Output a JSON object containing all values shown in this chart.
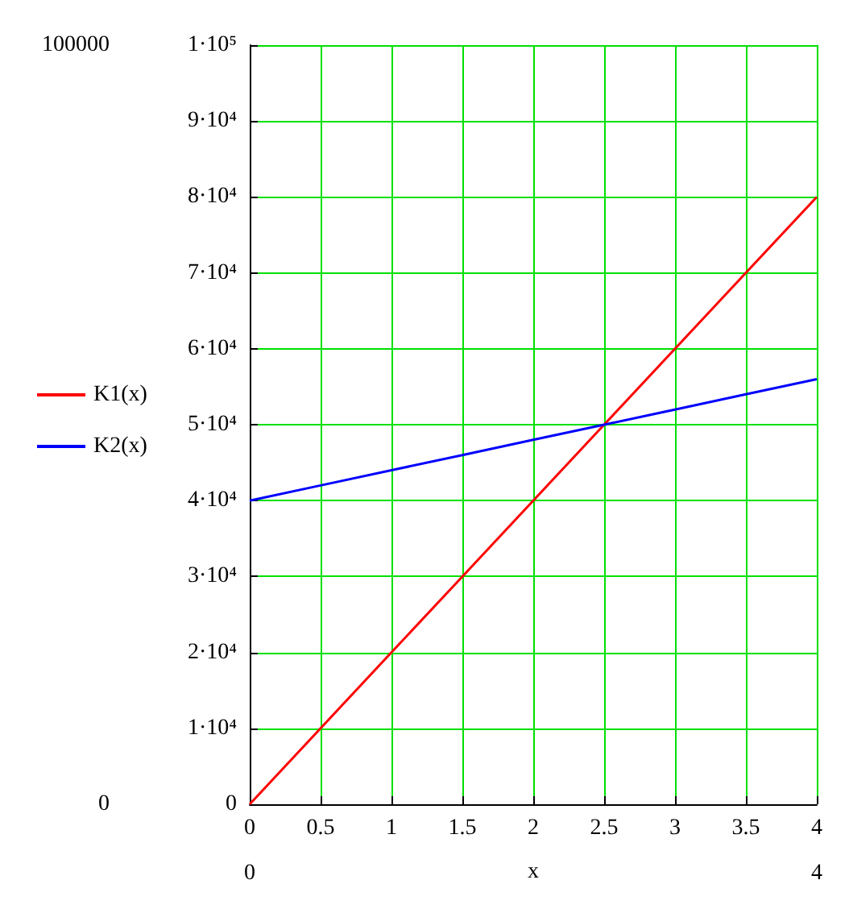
{
  "chart_data": {
    "type": "line",
    "xlabel": "x",
    "x": [
      0,
      0.5,
      1,
      1.5,
      2,
      2.5,
      3,
      3.5,
      4
    ],
    "series": [
      {
        "name": "K1(x)",
        "color": "#ff0000",
        "values": [
          0,
          10000,
          20000,
          30000,
          40000,
          50000,
          60000,
          70000,
          80000
        ]
      },
      {
        "name": "K2(x)",
        "color": "#0000ff",
        "values": [
          40000,
          42000,
          44000,
          46000,
          48000,
          50000,
          52000,
          54000,
          56000
        ]
      }
    ],
    "xlim": [
      0,
      4
    ],
    "xticks": [
      0,
      0.5,
      1,
      1.5,
      2,
      2.5,
      3,
      3.5,
      4
    ],
    "ylim": [
      0,
      100000
    ],
    "yticks": [
      {
        "value": 0,
        "label": "0"
      },
      {
        "value": 10000,
        "label": "1·10⁴"
      },
      {
        "value": 20000,
        "label": "2·10⁴"
      },
      {
        "value": 30000,
        "label": "3·10⁴"
      },
      {
        "value": 40000,
        "label": "4·10⁴"
      },
      {
        "value": 50000,
        "label": "5·10⁴"
      },
      {
        "value": 60000,
        "label": "6·10⁴"
      },
      {
        "value": 70000,
        "label": "7·10⁴"
      },
      {
        "value": 80000,
        "label": "8·10⁴"
      },
      {
        "value": 90000,
        "label": "9·10⁴"
      },
      {
        "value": 100000,
        "label": "1·10⁵"
      }
    ],
    "annotations": [
      "100000",
      "0",
      "0",
      "4"
    ],
    "grid": true,
    "legend": "left",
    "marker": "none",
    "line_style": "solid"
  }
}
